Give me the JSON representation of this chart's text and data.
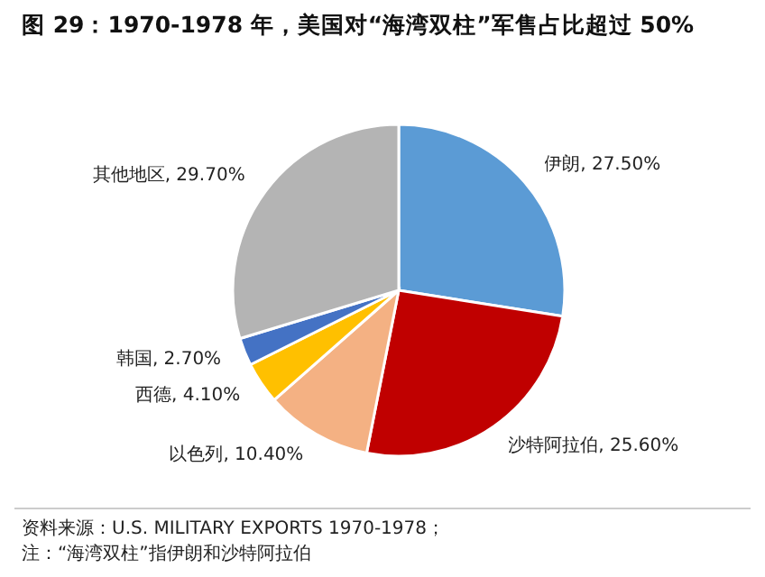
{
  "chart_data": {
    "type": "pie",
    "title": "图 29：1970-1978 年，美国对“海湾双柱”军售占比超过 50%",
    "categories": [
      "伊朗",
      "沙特阿拉伯",
      "以色列",
      "西德",
      "韩国",
      "其他地区"
    ],
    "values": [
      27.5,
      25.6,
      10.4,
      4.1,
      2.7,
      29.7
    ],
    "value_labels": [
      "27.50%",
      "25.60%",
      "10.40%",
      "4.10%",
      "2.70%",
      "29.70%"
    ],
    "colors": [
      "#5b9bd5",
      "#c00000",
      "#f4b183",
      "#ffc000",
      "#4472c4",
      "#b4b4b4"
    ],
    "annotations": [
      "资料来源：U.S. MILITARY EXPORTS 1970-1978；",
      "注：“海湾双柱”指伊朗和沙特阿拉伯"
    ]
  }
}
